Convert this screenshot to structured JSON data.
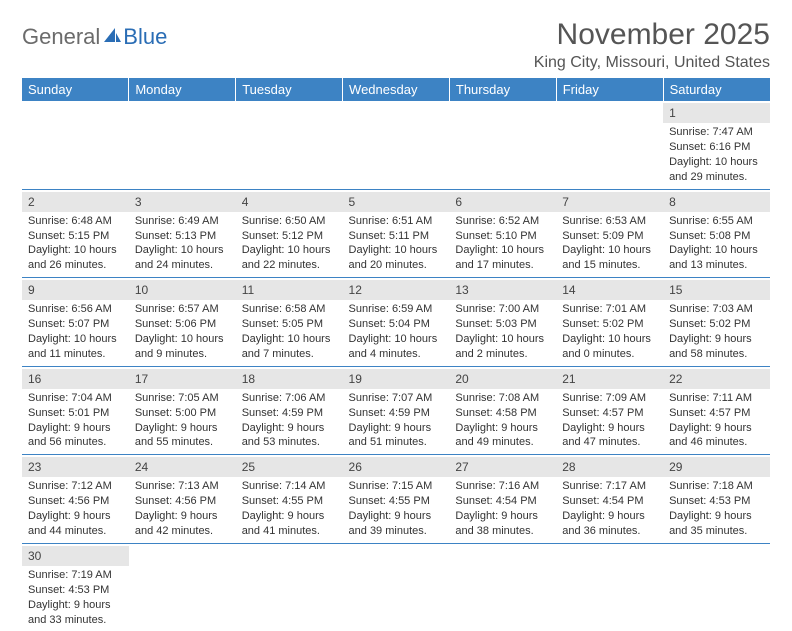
{
  "logo": {
    "text1": "General",
    "text2": "Blue"
  },
  "title": "November 2025",
  "location": "King City, Missouri, United States",
  "colors": {
    "header_bg": "#3d83c4",
    "header_fg": "#ffffff",
    "daynum_bg": "#e6e6e6",
    "border": "#3d83c4",
    "text": "#333333",
    "title": "#555555"
  },
  "weekdays": [
    "Sunday",
    "Monday",
    "Tuesday",
    "Wednesday",
    "Thursday",
    "Friday",
    "Saturday"
  ],
  "weeks": [
    [
      null,
      null,
      null,
      null,
      null,
      null,
      {
        "n": "1",
        "sr": "Sunrise: 7:47 AM",
        "ss": "Sunset: 6:16 PM",
        "dl": "Daylight: 10 hours and 29 minutes."
      }
    ],
    [
      {
        "n": "2",
        "sr": "Sunrise: 6:48 AM",
        "ss": "Sunset: 5:15 PM",
        "dl": "Daylight: 10 hours and 26 minutes."
      },
      {
        "n": "3",
        "sr": "Sunrise: 6:49 AM",
        "ss": "Sunset: 5:13 PM",
        "dl": "Daylight: 10 hours and 24 minutes."
      },
      {
        "n": "4",
        "sr": "Sunrise: 6:50 AM",
        "ss": "Sunset: 5:12 PM",
        "dl": "Daylight: 10 hours and 22 minutes."
      },
      {
        "n": "5",
        "sr": "Sunrise: 6:51 AM",
        "ss": "Sunset: 5:11 PM",
        "dl": "Daylight: 10 hours and 20 minutes."
      },
      {
        "n": "6",
        "sr": "Sunrise: 6:52 AM",
        "ss": "Sunset: 5:10 PM",
        "dl": "Daylight: 10 hours and 17 minutes."
      },
      {
        "n": "7",
        "sr": "Sunrise: 6:53 AM",
        "ss": "Sunset: 5:09 PM",
        "dl": "Daylight: 10 hours and 15 minutes."
      },
      {
        "n": "8",
        "sr": "Sunrise: 6:55 AM",
        "ss": "Sunset: 5:08 PM",
        "dl": "Daylight: 10 hours and 13 minutes."
      }
    ],
    [
      {
        "n": "9",
        "sr": "Sunrise: 6:56 AM",
        "ss": "Sunset: 5:07 PM",
        "dl": "Daylight: 10 hours and 11 minutes."
      },
      {
        "n": "10",
        "sr": "Sunrise: 6:57 AM",
        "ss": "Sunset: 5:06 PM",
        "dl": "Daylight: 10 hours and 9 minutes."
      },
      {
        "n": "11",
        "sr": "Sunrise: 6:58 AM",
        "ss": "Sunset: 5:05 PM",
        "dl": "Daylight: 10 hours and 7 minutes."
      },
      {
        "n": "12",
        "sr": "Sunrise: 6:59 AM",
        "ss": "Sunset: 5:04 PM",
        "dl": "Daylight: 10 hours and 4 minutes."
      },
      {
        "n": "13",
        "sr": "Sunrise: 7:00 AM",
        "ss": "Sunset: 5:03 PM",
        "dl": "Daylight: 10 hours and 2 minutes."
      },
      {
        "n": "14",
        "sr": "Sunrise: 7:01 AM",
        "ss": "Sunset: 5:02 PM",
        "dl": "Daylight: 10 hours and 0 minutes."
      },
      {
        "n": "15",
        "sr": "Sunrise: 7:03 AM",
        "ss": "Sunset: 5:02 PM",
        "dl": "Daylight: 9 hours and 58 minutes."
      }
    ],
    [
      {
        "n": "16",
        "sr": "Sunrise: 7:04 AM",
        "ss": "Sunset: 5:01 PM",
        "dl": "Daylight: 9 hours and 56 minutes."
      },
      {
        "n": "17",
        "sr": "Sunrise: 7:05 AM",
        "ss": "Sunset: 5:00 PM",
        "dl": "Daylight: 9 hours and 55 minutes."
      },
      {
        "n": "18",
        "sr": "Sunrise: 7:06 AM",
        "ss": "Sunset: 4:59 PM",
        "dl": "Daylight: 9 hours and 53 minutes."
      },
      {
        "n": "19",
        "sr": "Sunrise: 7:07 AM",
        "ss": "Sunset: 4:59 PM",
        "dl": "Daylight: 9 hours and 51 minutes."
      },
      {
        "n": "20",
        "sr": "Sunrise: 7:08 AM",
        "ss": "Sunset: 4:58 PM",
        "dl": "Daylight: 9 hours and 49 minutes."
      },
      {
        "n": "21",
        "sr": "Sunrise: 7:09 AM",
        "ss": "Sunset: 4:57 PM",
        "dl": "Daylight: 9 hours and 47 minutes."
      },
      {
        "n": "22",
        "sr": "Sunrise: 7:11 AM",
        "ss": "Sunset: 4:57 PM",
        "dl": "Daylight: 9 hours and 46 minutes."
      }
    ],
    [
      {
        "n": "23",
        "sr": "Sunrise: 7:12 AM",
        "ss": "Sunset: 4:56 PM",
        "dl": "Daylight: 9 hours and 44 minutes."
      },
      {
        "n": "24",
        "sr": "Sunrise: 7:13 AM",
        "ss": "Sunset: 4:56 PM",
        "dl": "Daylight: 9 hours and 42 minutes."
      },
      {
        "n": "25",
        "sr": "Sunrise: 7:14 AM",
        "ss": "Sunset: 4:55 PM",
        "dl": "Daylight: 9 hours and 41 minutes."
      },
      {
        "n": "26",
        "sr": "Sunrise: 7:15 AM",
        "ss": "Sunset: 4:55 PM",
        "dl": "Daylight: 9 hours and 39 minutes."
      },
      {
        "n": "27",
        "sr": "Sunrise: 7:16 AM",
        "ss": "Sunset: 4:54 PM",
        "dl": "Daylight: 9 hours and 38 minutes."
      },
      {
        "n": "28",
        "sr": "Sunrise: 7:17 AM",
        "ss": "Sunset: 4:54 PM",
        "dl": "Daylight: 9 hours and 36 minutes."
      },
      {
        "n": "29",
        "sr": "Sunrise: 7:18 AM",
        "ss": "Sunset: 4:53 PM",
        "dl": "Daylight: 9 hours and 35 minutes."
      }
    ],
    [
      {
        "n": "30",
        "sr": "Sunrise: 7:19 AM",
        "ss": "Sunset: 4:53 PM",
        "dl": "Daylight: 9 hours and 33 minutes."
      },
      null,
      null,
      null,
      null,
      null,
      null
    ]
  ]
}
